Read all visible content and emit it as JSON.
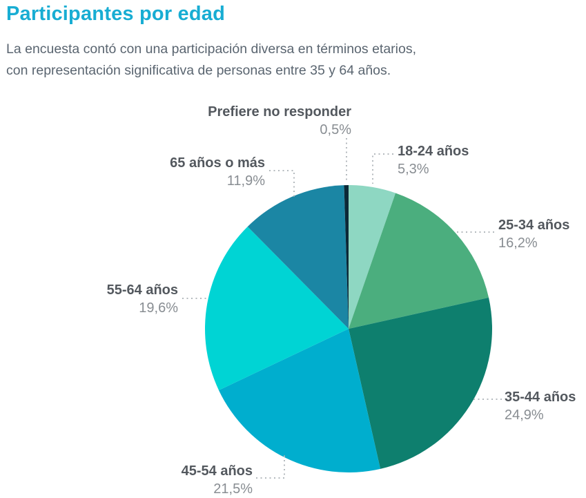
{
  "page": {
    "title": "Participantes por edad",
    "subtitle_line1": "La encuesta contó con una participación diversa en términos etarios,",
    "subtitle_line2": "con representación significativa de personas entre 35 y 64 años."
  },
  "colors": {
    "title_accent": "#18ADD3",
    "subtitle_text": "#5A6570",
    "label_text": "#53585E",
    "percent_text": "#888D92",
    "leader_line": "#B4BABE"
  },
  "chart_data": {
    "type": "pie",
    "title": "Participantes por edad",
    "categories": [
      "18-24 años",
      "25-34 años",
      "35-44 años",
      "45-54 años",
      "55-64 años",
      "65 años o más",
      "Prefiere no responder"
    ],
    "values": [
      5.3,
      16.2,
      24.9,
      21.5,
      19.6,
      11.9,
      0.5
    ],
    "value_labels": [
      "5,3%",
      "16,2%",
      "24,9%",
      "21,5%",
      "19,6%",
      "11,9%",
      "0,5%"
    ],
    "colors": [
      "#8ED7C2",
      "#4BAE7E",
      "#0E7F6E",
      "#00AECE",
      "#00D4D4",
      "#1B86A4",
      "#0C2937"
    ],
    "start_angle_deg": 0,
    "direction": "clockwise",
    "legend_position": "labels-around-pie",
    "grid": false
  }
}
